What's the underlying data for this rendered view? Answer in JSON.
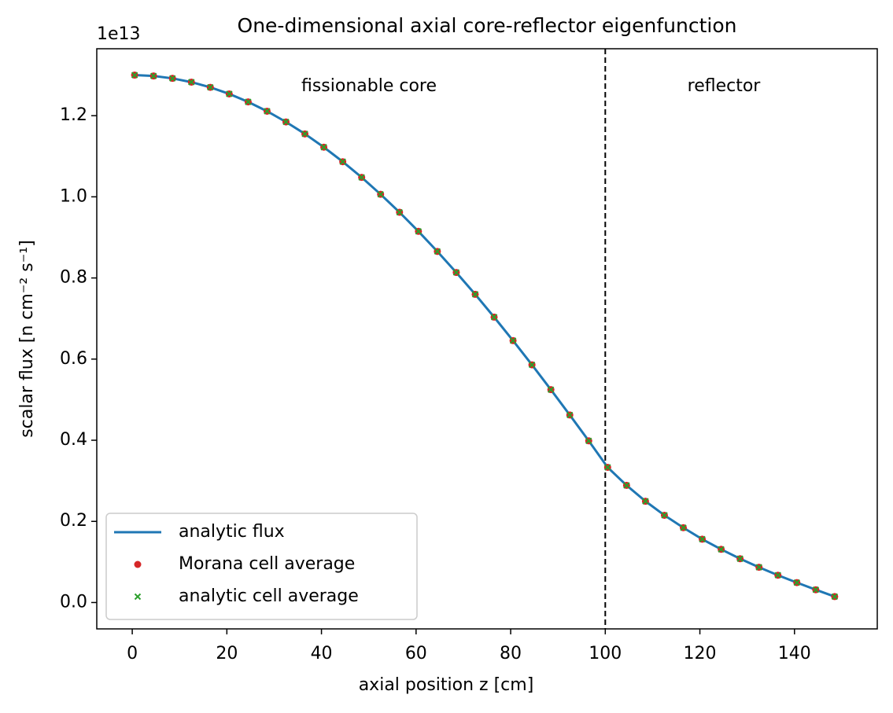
{
  "chart_data": {
    "type": "line",
    "title": "One-dimensional axial core-reflector eigenfunction",
    "x_label": "axial position z [cm]",
    "y_label": "scalar flux [n cm⁻² s⁻¹]",
    "y_offset_label": "1e13",
    "annotations": [
      "fissionable core",
      "reflector"
    ],
    "vline": 100,
    "x": [
      0.5,
      4.5,
      8.5,
      12.5,
      16.5,
      20.5,
      24.5,
      28.5,
      32.5,
      36.5,
      40.5,
      44.5,
      48.5,
      52.5,
      56.5,
      60.5,
      64.5,
      68.5,
      72.5,
      76.5,
      80.5,
      84.5,
      88.5,
      92.5,
      96.5,
      100.5,
      104.5,
      108.5,
      112.5,
      116.5,
      120.5,
      124.5,
      128.5,
      132.5,
      136.5,
      140.5,
      144.5,
      148.5
    ],
    "series": [
      {
        "name": "analytic flux",
        "color": "#1f77b4",
        "style": "line",
        "values": [
          1.3,
          1.2978,
          1.292,
          1.2827,
          1.2699,
          1.2537,
          1.234,
          1.211,
          1.1846,
          1.1551,
          1.1223,
          1.0865,
          1.0479,
          1.0062,
          0.9619,
          0.9149,
          0.8654,
          0.8136,
          0.7597,
          0.7035,
          0.6456,
          0.5859,
          0.5247,
          0.4622,
          0.3985,
          0.3332,
          0.2888,
          0.2496,
          0.2151,
          0.1844,
          0.1561,
          0.1311,
          0.1079,
          0.0869,
          0.0673,
          0.0491,
          0.0315,
          0.0146
        ]
      },
      {
        "name": "Morana cell average",
        "color": "#d62728",
        "style": "dot",
        "values": [
          1.3,
          1.2978,
          1.292,
          1.2827,
          1.2699,
          1.2537,
          1.234,
          1.211,
          1.1846,
          1.1551,
          1.1223,
          1.0865,
          1.0479,
          1.0062,
          0.9619,
          0.9149,
          0.8654,
          0.8136,
          0.7597,
          0.7035,
          0.6456,
          0.5859,
          0.5247,
          0.4622,
          0.3985,
          0.3332,
          0.2888,
          0.2496,
          0.2151,
          0.1844,
          0.1561,
          0.1311,
          0.1079,
          0.0869,
          0.0673,
          0.0491,
          0.0315,
          0.0146
        ]
      },
      {
        "name": "analytic cell average",
        "color": "#2ca02c",
        "style": "cross",
        "values": [
          1.3,
          1.2978,
          1.292,
          1.2827,
          1.2699,
          1.2537,
          1.234,
          1.211,
          1.1846,
          1.1551,
          1.1223,
          1.0865,
          1.0479,
          1.0062,
          0.9619,
          0.9149,
          0.8654,
          0.8136,
          0.7597,
          0.7035,
          0.6456,
          0.5859,
          0.5247,
          0.4622,
          0.3985,
          0.3332,
          0.2888,
          0.2496,
          0.2151,
          0.1844,
          0.1561,
          0.1311,
          0.1079,
          0.0869,
          0.0673,
          0.0491,
          0.0315,
          0.0146
        ]
      }
    ],
    "xlim": [
      -7.5,
      157.5
    ],
    "ylim": [
      -0.065,
      1.365
    ],
    "xticks": [
      0,
      20,
      40,
      60,
      80,
      100,
      120,
      140
    ],
    "yticks": [
      {
        "value": 0,
        "label": "0.0"
      },
      0.2,
      0.4,
      0.6,
      0.8,
      {
        "value": 1,
        "label": "1.0"
      },
      1.2
    ],
    "legend": "lower left",
    "grid": false
  }
}
